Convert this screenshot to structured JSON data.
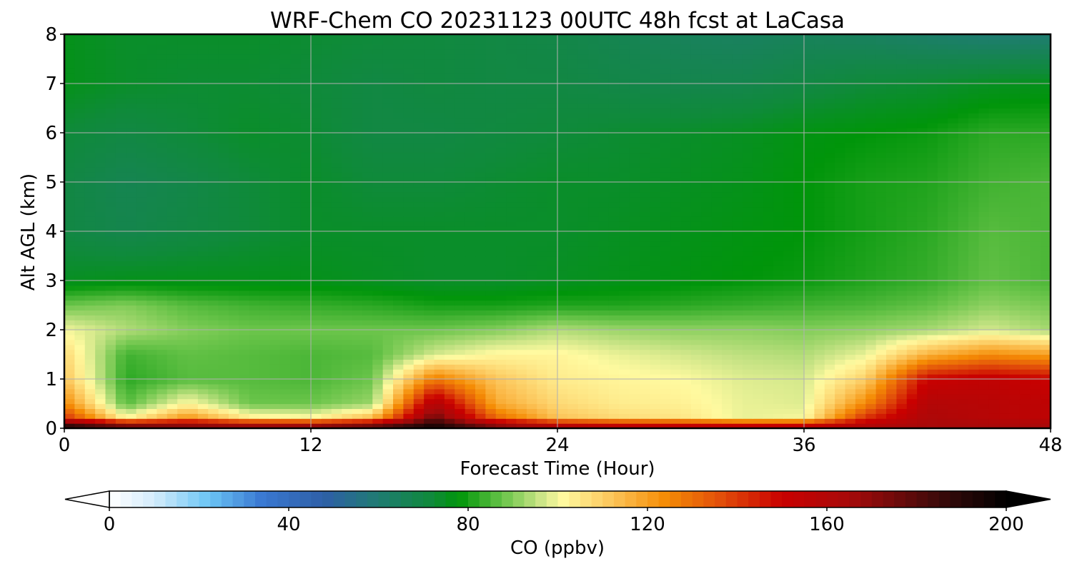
{
  "chart_data": {
    "type": "heatmap",
    "title": "WRF-Chem CO  20231123 00UTC 48h fcst at LaCasa",
    "xlabel": "Forecast Time (Hour)",
    "ylabel": "Alt AGL (km)",
    "xlim": [
      0,
      48
    ],
    "ylim": [
      0,
      8
    ],
    "x_ticks": [
      0,
      12,
      24,
      36,
      48
    ],
    "y_ticks": [
      0,
      1,
      2,
      3,
      4,
      5,
      6,
      7,
      8
    ],
    "grid": true,
    "x": [
      0,
      3,
      6,
      9,
      12,
      15,
      18,
      21,
      24,
      27,
      30,
      33,
      36,
      39,
      42,
      45,
      48
    ],
    "y": [
      0,
      0.25,
      0.5,
      1,
      1.5,
      2,
      2.5,
      3,
      4,
      5,
      6,
      7,
      8
    ],
    "values": [
      [
        200,
        190,
        182,
        182,
        183,
        190,
        198,
        180,
        170,
        166,
        165,
        165,
        165,
        165,
        165,
        165,
        165
      ],
      [
        140,
        100,
        120,
        102,
        100,
        112,
        175,
        130,
        112,
        107,
        105,
        99,
        100,
        140,
        162,
        158,
        155
      ],
      [
        125,
        86,
        102,
        88,
        88,
        92,
        162,
        118,
        108,
        104,
        103,
        99,
        98,
        125,
        160,
        158,
        155
      ],
      [
        112,
        82,
        86,
        86,
        85,
        88,
        128,
        112,
        104,
        102,
        101,
        98,
        97,
        110,
        150,
        154,
        150
      ],
      [
        108,
        84,
        87,
        86,
        85,
        86,
        97,
        102,
        102,
        99,
        97,
        95,
        94,
        99,
        116,
        124,
        120
      ],
      [
        100,
        94,
        90,
        88,
        88,
        88,
        88,
        90,
        94,
        92,
        91,
        91,
        90,
        91,
        93,
        97,
        93
      ],
      [
        88,
        90,
        86,
        84,
        83,
        82,
        80,
        80,
        81,
        81,
        82,
        83,
        84,
        85,
        87,
        91,
        89
      ],
      [
        75,
        76,
        76,
        76,
        76,
        75,
        74,
        74,
        75,
        76,
        77,
        78,
        79,
        81,
        83,
        87,
        85
      ],
      [
        70,
        68,
        70,
        72,
        74,
        74,
        74,
        74,
        74,
        75,
        76,
        77,
        78,
        80,
        82,
        86,
        85
      ],
      [
        70,
        67,
        69,
        72,
        74,
        72,
        72,
        73,
        74,
        74,
        75,
        76,
        78,
        80,
        81,
        84,
        85
      ],
      [
        72,
        70,
        72,
        74,
        73,
        70,
        70,
        71,
        72,
        73,
        74,
        75,
        77,
        78,
        79,
        82,
        82
      ],
      [
        76,
        74,
        73,
        73,
        72,
        70,
        71,
        70,
        70,
        69,
        68,
        68,
        70,
        72,
        73,
        75,
        76
      ],
      [
        76,
        74,
        74,
        74,
        73,
        72,
        71,
        70,
        69,
        67,
        65,
        64,
        65,
        64,
        62,
        60,
        60
      ]
    ],
    "colorbar": {
      "label": "CO  (ppbv)",
      "range": [
        0,
        200
      ],
      "ticks": [
        0,
        40,
        80,
        120,
        160,
        200
      ],
      "extend": "both",
      "colors": [
        {
          "v": 0,
          "c": "#ffffff"
        },
        {
          "v": 10,
          "c": "#d4ecfb"
        },
        {
          "v": 22,
          "c": "#6cc6f5"
        },
        {
          "v": 34,
          "c": "#3a78d2"
        },
        {
          "v": 48,
          "c": "#2e5fa6"
        },
        {
          "v": 60,
          "c": "#1f7c72"
        },
        {
          "v": 72,
          "c": "#0f8a3a"
        },
        {
          "v": 78,
          "c": "#00950a"
        },
        {
          "v": 88,
          "c": "#6cc54b"
        },
        {
          "v": 96,
          "c": "#c9e486"
        },
        {
          "v": 101,
          "c": "#fffaa0"
        },
        {
          "v": 112,
          "c": "#fcc55a"
        },
        {
          "v": 124,
          "c": "#f58c05"
        },
        {
          "v": 136,
          "c": "#e2500a"
        },
        {
          "v": 150,
          "c": "#c90000"
        },
        {
          "v": 165,
          "c": "#a70a0a"
        },
        {
          "v": 185,
          "c": "#3b0a0a"
        },
        {
          "v": 200,
          "c": "#000000"
        }
      ]
    }
  }
}
